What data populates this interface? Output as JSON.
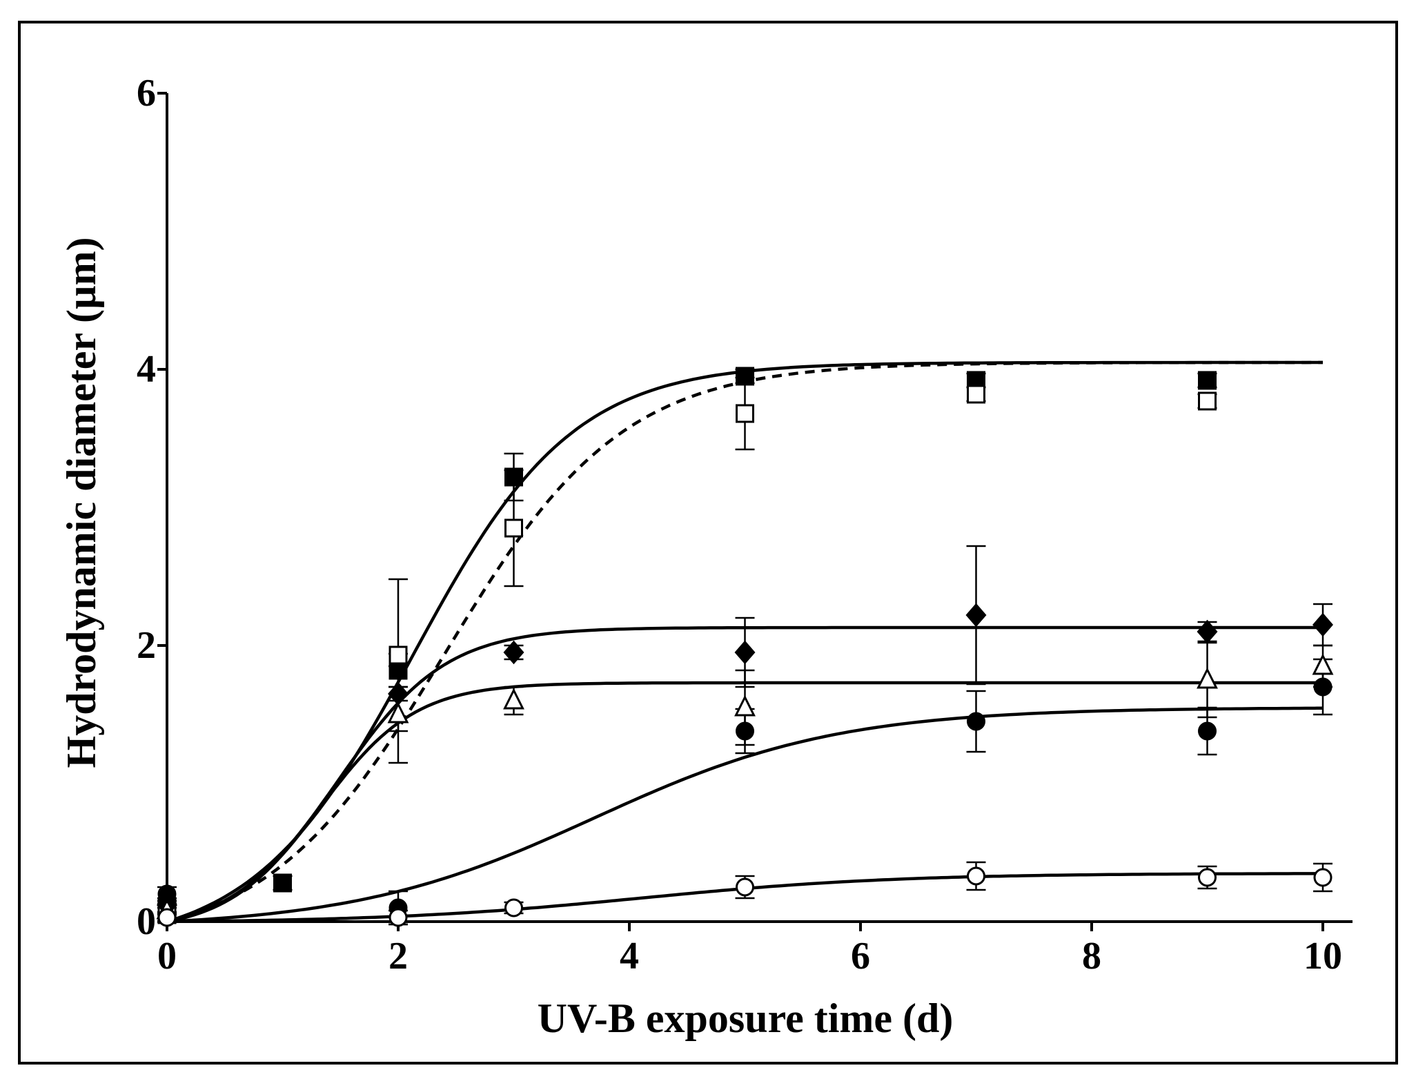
{
  "chart_data": {
    "type": "scatter",
    "title": "",
    "xlabel": "UV-B exposure time (d)",
    "ylabel": "Hydrodynamic diameter (µm)",
    "xlim": [
      0,
      10.25
    ],
    "ylim": [
      0,
      6
    ],
    "xticks": [
      0,
      2,
      4,
      6,
      8,
      10
    ],
    "yticks": [
      0,
      2,
      4,
      6
    ],
    "xtick_labels": [
      "0",
      "2",
      "4",
      "6",
      "8",
      "10"
    ],
    "ytick_labels": [
      "0",
      "2",
      "4",
      "6"
    ],
    "grid": false,
    "colors": {
      "ink": "#000000",
      "hollow_fill": "#ffffff"
    },
    "series": [
      {
        "name": "filled squares",
        "marker": "square-filled",
        "x": [
          0,
          1,
          2,
          3,
          5,
          7,
          9
        ],
        "y": [
          0.1,
          0.28,
          1.82,
          3.22,
          3.95,
          3.92,
          3.92
        ],
        "err": [
          0.05,
          0.05,
          0.12,
          0.17,
          0.05,
          0.05,
          0.05
        ],
        "fit": {
          "style": "solid",
          "x_end": 10,
          "L": 4.05,
          "k": 1.45,
          "x0": 2.13
        }
      },
      {
        "name": "open squares",
        "marker": "square-open",
        "x": [
          0,
          2,
          3,
          5,
          7,
          9
        ],
        "y": [
          0.05,
          1.93,
          2.85,
          3.68,
          3.82,
          3.77
        ],
        "err": [
          0.05,
          0.55,
          0.42,
          0.26,
          0.05,
          0.05
        ],
        "fit": {
          "style": "dashed",
          "x_end": 10,
          "L": 4.05,
          "k": 1.3,
          "x0": 2.4
        }
      },
      {
        "name": "filled diamonds",
        "marker": "diamond-filled",
        "x": [
          0,
          2,
          3,
          5,
          7,
          9,
          10
        ],
        "y": [
          0.12,
          1.65,
          1.95,
          1.95,
          2.22,
          2.1,
          2.15
        ],
        "err": [
          0.05,
          0.05,
          0.05,
          0.25,
          0.5,
          0.07,
          0.15
        ],
        "fit": {
          "style": "solid",
          "x_end": 10,
          "L": 2.13,
          "k": 2.15,
          "x0": 1.48
        }
      },
      {
        "name": "open triangles",
        "marker": "triangle-open",
        "x": [
          0,
          2,
          3,
          5,
          9,
          10
        ],
        "y": [
          0.08,
          1.5,
          1.6,
          1.55,
          1.75,
          1.85
        ],
        "err": [
          0.05,
          0.35,
          0.1,
          0.27,
          0.27,
          0.15
        ],
        "fit": {
          "style": "solid",
          "x_end": 10,
          "L": 1.73,
          "k": 2.45,
          "x0": 1.33
        }
      },
      {
        "name": "filled circles",
        "marker": "circle-filled",
        "x": [
          0,
          2,
          5,
          7,
          9,
          10
        ],
        "y": [
          0.2,
          0.1,
          1.38,
          1.45,
          1.38,
          1.7
        ],
        "err": [
          0.05,
          0.12,
          0.16,
          0.22,
          0.17,
          0.2
        ],
        "fit": {
          "style": "solid",
          "x_end": 10,
          "L": 1.55,
          "k": 0.95,
          "x0": 3.7
        }
      },
      {
        "name": "open circles",
        "marker": "circle-open",
        "x": [
          0,
          2,
          3,
          5,
          7,
          9,
          10
        ],
        "y": [
          0.03,
          0.03,
          0.1,
          0.25,
          0.33,
          0.32,
          0.32
        ],
        "err": [
          0.03,
          0.05,
          0.04,
          0.08,
          0.1,
          0.08,
          0.1
        ],
        "fit": {
          "style": "solid",
          "x_end": 10,
          "L": 0.35,
          "k": 0.9,
          "x0": 4.1
        }
      }
    ]
  }
}
